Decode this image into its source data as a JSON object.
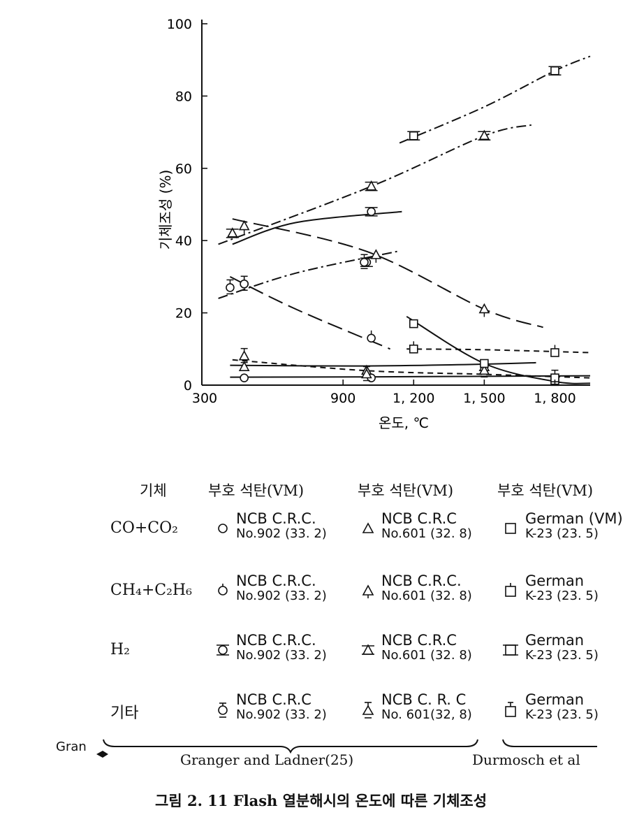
{
  "chart_data": {
    "type": "line",
    "title": "",
    "xlabel": "온도, ℃",
    "ylabel": "기체조성 (%)",
    "xlim": [
      300,
      1950
    ],
    "ylim": [
      0,
      100
    ],
    "x_ticks": [
      300,
      900,
      1200,
      1500,
      1800
    ],
    "x_tick_labels": [
      "300",
      "900",
      "1, 200",
      "1, 500",
      "1, 800"
    ],
    "y_ticks": [
      0,
      20,
      40,
      60,
      80,
      100
    ],
    "y_tick_labels": [
      "0",
      "20",
      "40",
      "60",
      "80",
      "100"
    ],
    "grid": false,
    "series": [
      {
        "sym": "circle",
        "gas": "co",
        "style": "solid",
        "points": [
          [
            480,
            2
          ],
          [
            1020,
            2
          ]
        ],
        "curve": [
          [
            420,
            2.2
          ],
          [
            1050,
            2.3
          ],
          [
            1950,
            2.6
          ]
        ]
      },
      {
        "sym": "circle",
        "gas": "ch4",
        "style": "long",
        "points": [
          [
            480,
            28
          ],
          [
            1020,
            13
          ]
        ],
        "curve": [
          [
            420,
            30
          ],
          [
            700,
            21
          ],
          [
            1100,
            10
          ]
        ]
      },
      {
        "sym": "circle",
        "gas": "h2",
        "style": "solid",
        "points": [
          [
            1000,
            34
          ],
          [
            1020,
            48
          ]
        ],
        "curve": [
          [
            430,
            39
          ],
          [
            700,
            45
          ],
          [
            1150,
            48
          ]
        ]
      },
      {
        "sym": "circle",
        "gas": "other",
        "style": "dashdot",
        "points": [
          [
            420,
            27
          ],
          [
            480,
            28
          ],
          [
            990,
            34
          ]
        ],
        "curve": [
          [
            370,
            24
          ],
          [
            700,
            31
          ],
          [
            1130,
            37
          ]
        ]
      },
      {
        "sym": "triangle",
        "gas": "co",
        "style": "solid",
        "points": [
          [
            480,
            5
          ],
          [
            1000,
            4
          ],
          [
            1500,
            5
          ]
        ],
        "curve": [
          [
            420,
            5.5
          ],
          [
            1000,
            5.3
          ],
          [
            1500,
            5.8
          ],
          [
            1720,
            6.2
          ]
        ]
      },
      {
        "sym": "triangle",
        "gas": "ch4",
        "style": "long",
        "points": [
          [
            480,
            44
          ],
          [
            1040,
            36
          ],
          [
            1500,
            21
          ]
        ],
        "curve": [
          [
            430,
            46
          ],
          [
            1000,
            37
          ],
          [
            1500,
            21
          ],
          [
            1750,
            16
          ]
        ]
      },
      {
        "sym": "triangle",
        "gas": "h2",
        "style": "dashdot",
        "points": [
          [
            430,
            42
          ],
          [
            1020,
            55
          ],
          [
            1500,
            69
          ]
        ],
        "curve": [
          [
            370,
            39
          ],
          [
            1020,
            55
          ],
          [
            1500,
            69
          ],
          [
            1700,
            72
          ]
        ]
      },
      {
        "sym": "triangle",
        "gas": "other",
        "style": "dashed",
        "points": [
          [
            480,
            8
          ],
          [
            1000,
            3
          ],
          [
            1500,
            4
          ]
        ],
        "curve": [
          [
            430,
            7
          ],
          [
            1000,
            4
          ],
          [
            1500,
            3
          ],
          [
            1950,
            2
          ]
        ]
      },
      {
        "sym": "square",
        "gas": "co",
        "style": "solid",
        "points": [
          [
            1200,
            17
          ],
          [
            1500,
            6
          ],
          [
            1800,
            1
          ]
        ],
        "curve": [
          [
            1170,
            19
          ],
          [
            1500,
            6
          ],
          [
            1800,
            1
          ],
          [
            1950,
            0.5
          ]
        ]
      },
      {
        "sym": "square",
        "gas": "ch4",
        "style": "dashed",
        "points": [
          [
            1200,
            10
          ],
          [
            1800,
            9
          ]
        ],
        "curve": [
          [
            1170,
            10
          ],
          [
            1500,
            9.8
          ],
          [
            1950,
            9
          ]
        ]
      },
      {
        "sym": "square",
        "gas": "h2",
        "style": "dashdot",
        "points": [
          [
            1200,
            69
          ],
          [
            1800,
            87
          ]
        ],
        "curve": [
          [
            1140,
            67
          ],
          [
            1500,
            77
          ],
          [
            1800,
            87
          ],
          [
            1950,
            91
          ]
        ]
      },
      {
        "sym": "square",
        "gas": "other",
        "style": "dashed",
        "points": [
          [
            1800,
            2
          ]
        ],
        "curve": []
      }
    ]
  },
  "legend": {
    "headers": {
      "gas": "기체",
      "col1": "부호  석탄(VM)",
      "col2": "부호  석탄(VM)",
      "col3": "부호  석탄(VM)"
    },
    "rows": [
      {
        "gas": "CO+CO₂",
        "c1": {
          "l1": "NCB C.R.C.",
          "l2": "No.902 (33. 2)"
        },
        "c2": {
          "l1": "NCB  C.R.C",
          "l2": "No.601 (32. 8)"
        },
        "c3": {
          "l1": "German (VM)",
          "l2": "K-23 (23. 5)"
        }
      },
      {
        "gas": "CH₄+C₂H₆",
        "c1": {
          "l1": "NCB  C.R.C.",
          "l2": "No.902 (33. 2)"
        },
        "c2": {
          "l1": "NCB  C.R.C.",
          "l2": "No.601 (32. 8)"
        },
        "c3": {
          "l1": "German",
          "l2": "K-23 (23. 5)"
        }
      },
      {
        "gas": "H₂",
        "c1": {
          "l1": "NCB C.R.C.",
          "l2": "No.902 (33. 2)"
        },
        "c2": {
          "l1": "NCB  C.R.C",
          "l2": "No.601 (32. 8)"
        },
        "c3": {
          "l1": "German",
          "l2": "K-23 (23. 5)"
        }
      },
      {
        "gas": "기타",
        "c1": {
          "l1": "NCB C.R.C",
          "l2": "No.902 (33. 2)"
        },
        "c2": {
          "l1": "NCB  C. R. C",
          "l2": "No.  601(32, 8)"
        },
        "c3": {
          "l1": "German",
          "l2": "K-23 (23. 5)"
        }
      }
    ],
    "gran_label": "Gran",
    "source_left": "Granger and Ladner(25)",
    "source_right": "Durmosch et al"
  },
  "caption": "그림 2. 11  Flash 열분해시의 온도에 따른 기체조성"
}
